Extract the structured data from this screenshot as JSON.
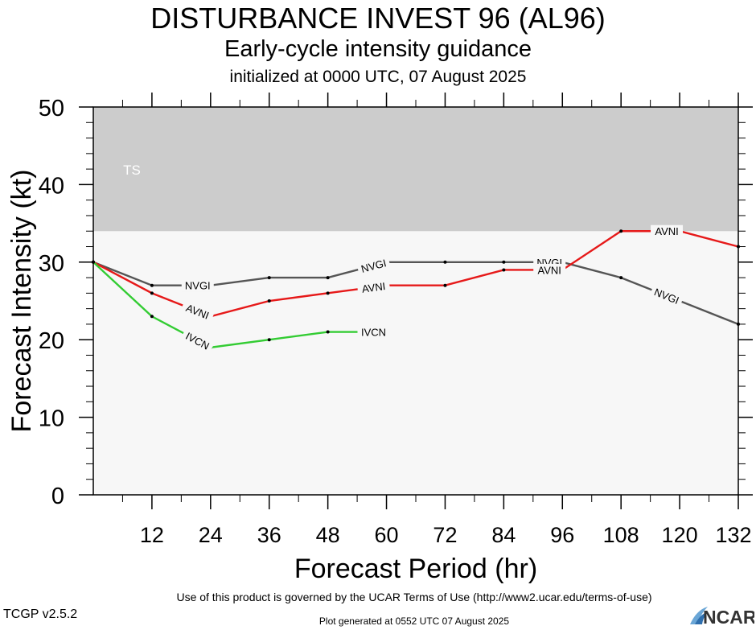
{
  "header": {
    "title": "DISTURBANCE INVEST 96 (AL96)",
    "subtitle": "Early-cycle intensity guidance",
    "init": "initialized at 0000 UTC, 07 August 2025"
  },
  "footer": {
    "terms": "Use of this product is governed by the UCAR Terms of Use (http://www2.ucar.edu/terms-of-use)",
    "version": "TCGP v2.5.2",
    "generated": "Plot generated at 0552 UTC   07 August 2025",
    "logo_text": "NCAR"
  },
  "chart_data": {
    "type": "line",
    "title": "DISTURBANCE INVEST 96 (AL96)",
    "xlabel": "Forecast Period (hr)",
    "ylabel": "Forecast Intensity (kt)",
    "xlim": [
      0,
      132
    ],
    "ylim": [
      0,
      50
    ],
    "xticks": [
      12,
      24,
      36,
      48,
      60,
      72,
      84,
      96,
      108,
      120,
      132
    ],
    "yticks": [
      0,
      10,
      20,
      30,
      40,
      50
    ],
    "bands": [
      {
        "label": "TS",
        "from": 34,
        "to": 50,
        "color": "#cccccc"
      }
    ],
    "series": [
      {
        "name": "NVGI",
        "color": "#555555",
        "x": [
          0,
          12,
          24,
          36,
          48,
          60,
          72,
          84,
          96,
          108,
          120,
          132
        ],
        "y": [
          30,
          27,
          27,
          28,
          28,
          30,
          30,
          30,
          30,
          28,
          25,
          22
        ],
        "label_at": [
          24,
          60,
          96,
          120
        ]
      },
      {
        "name": "AVNI",
        "color": "#e61919",
        "x": [
          0,
          12,
          24,
          36,
          48,
          60,
          72,
          84,
          96,
          108,
          120,
          132
        ],
        "y": [
          30,
          26,
          23,
          25,
          26,
          27,
          27,
          29,
          29,
          34,
          34,
          32
        ],
        "label_at": [
          24,
          60,
          96,
          120
        ]
      },
      {
        "name": "IVCN",
        "color": "#33cc33",
        "x": [
          0,
          12,
          24,
          36,
          48,
          60
        ],
        "y": [
          30,
          23,
          19,
          20,
          21,
          21
        ],
        "label_at": [
          24,
          60
        ]
      }
    ],
    "plot_background": "#f7f7f7"
  }
}
